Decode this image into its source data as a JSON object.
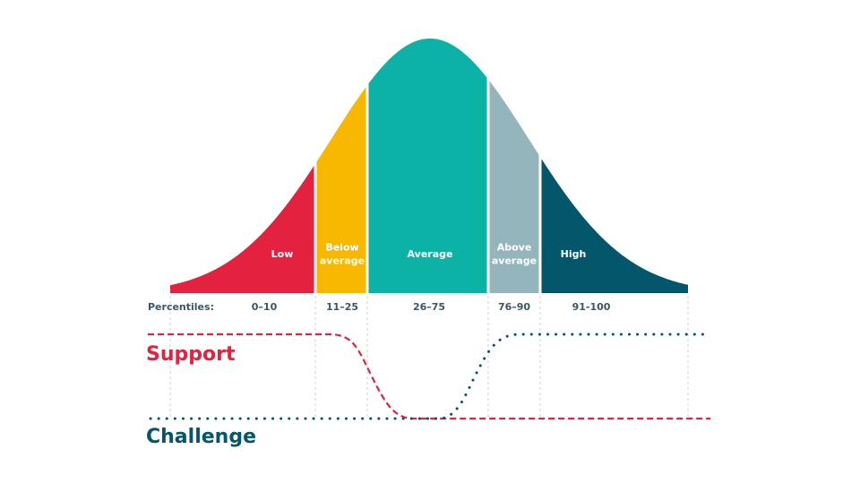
{
  "segments": [
    {
      "label": [
        "Low"
      ],
      "percentile": "0–10",
      "color": "#e4223f"
    },
    {
      "label": [
        "Below",
        "average"
      ],
      "percentile": "11–25",
      "color": "#f8b800"
    },
    {
      "label": [
        "Average"
      ],
      "percentile": "26–75",
      "color": "#0db2a6"
    },
    {
      "label": [
        "Above",
        "average"
      ],
      "percentile": "76–90",
      "color": "#94b5bc"
    },
    {
      "label": [
        "High"
      ],
      "percentile": "91-100",
      "color": "#04566b"
    }
  ],
  "percentiles_label": "Percentiles:",
  "support": {
    "label": "Support",
    "color": "#e4223f"
  },
  "challenge": {
    "label": "Challenge",
    "color": "#04566b"
  }
}
